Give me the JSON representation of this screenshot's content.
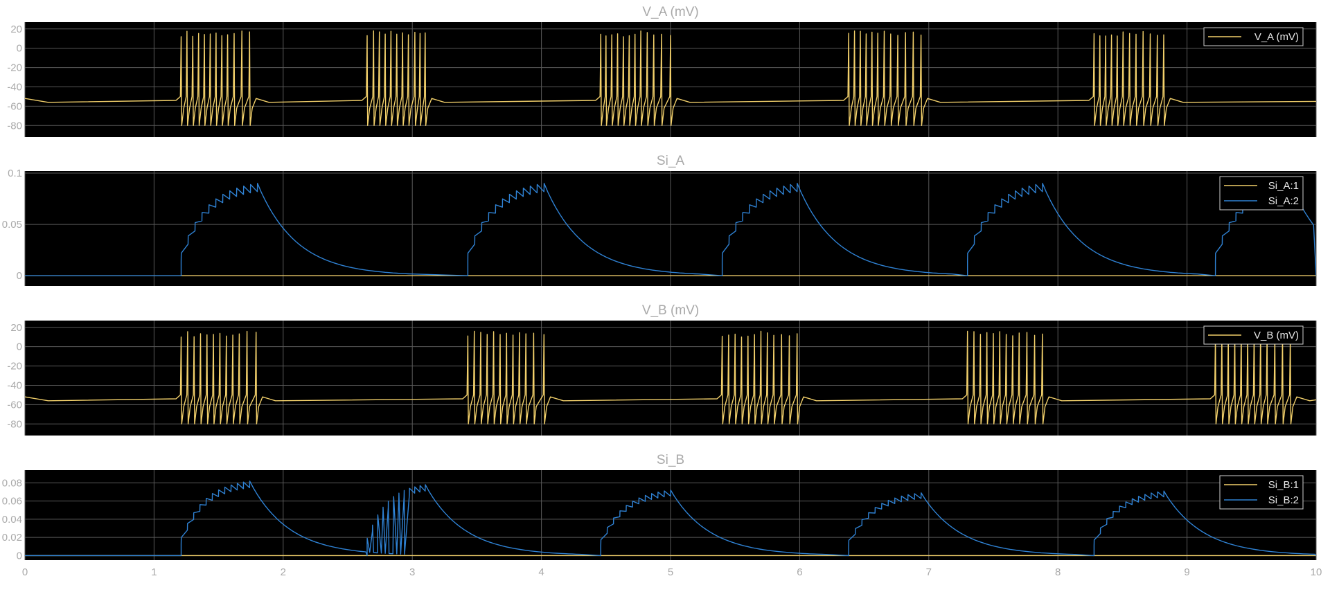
{
  "colors": {
    "plot_background": "#000000",
    "grid": "#5a5a5a",
    "text": "#a9a9a9",
    "signal_yellow": "#f2d06b",
    "signal_blue": "#2f82d4"
  },
  "chart_data": [
    {
      "type": "line",
      "title": "V_A (mV)",
      "xlim": [
        0,
        10
      ],
      "ylim": [
        -92,
        27
      ],
      "yticks": [
        -80,
        -60,
        -40,
        -20,
        0,
        20
      ],
      "ytick_labels": [
        "-80",
        "-60",
        "-40",
        "-20",
        "0",
        "20"
      ],
      "grid": true,
      "legend_position": "top-right",
      "waveform": "spiking",
      "rest_level": -56,
      "spike_peak": 16,
      "spike_trough": -80,
      "series": [
        {
          "name": "V_A (mV)",
          "color": "#f2d06b",
          "bursts": [
            {
              "start": 1.21,
              "end": 1.74,
              "spike_times": [
                1.21,
                1.255,
                1.3,
                1.345,
                1.39,
                1.435,
                1.48,
                1.525,
                1.57,
                1.62,
                1.68,
                1.74
              ]
            },
            {
              "start": 2.65,
              "end": 3.1,
              "spike_times": [
                2.65,
                2.7,
                2.745,
                2.79,
                2.835,
                2.88,
                2.925,
                2.97,
                3.02,
                3.06,
                3.1
              ]
            },
            {
              "start": 4.46,
              "end": 5.0,
              "spike_times": [
                4.46,
                4.5,
                4.545,
                4.59,
                4.635,
                4.68,
                4.725,
                4.77,
                4.82,
                4.87,
                4.93,
                5.0
              ]
            },
            {
              "start": 6.38,
              "end": 6.94,
              "spike_times": [
                6.38,
                6.425,
                6.47,
                6.515,
                6.56,
                6.605,
                6.655,
                6.705,
                6.76,
                6.82,
                6.88,
                6.94
              ]
            },
            {
              "start": 8.28,
              "end": 8.82,
              "spike_times": [
                8.28,
                8.325,
                8.37,
                8.415,
                8.46,
                8.505,
                8.555,
                8.605,
                8.66,
                8.715,
                8.77,
                8.82
              ]
            }
          ]
        }
      ]
    },
    {
      "type": "line",
      "title": "Si_A",
      "xlim": [
        0,
        10
      ],
      "ylim": [
        -0.01,
        0.102
      ],
      "yticks": [
        0,
        0.05,
        0.1
      ],
      "ytick_labels": [
        "0",
        "0.05",
        "0.1"
      ],
      "grid": true,
      "legend_position": "top-right",
      "waveform": "synaptic",
      "peak_value": 0.09,
      "decay_tau": 0.3,
      "series": [
        {
          "name": "Si_A:1",
          "color": "#f2d06b",
          "constant_value": 0
        },
        {
          "name": "Si_A:2",
          "color": "#2f82d4",
          "bursts": [
            {
              "start": 1.21,
              "end": 1.8,
              "peak_value": 0.09
            },
            {
              "start": 3.43,
              "end": 4.02,
              "peak_value": 0.09
            },
            {
              "start": 5.4,
              "end": 5.98,
              "peak_value": 0.09
            },
            {
              "start": 7.3,
              "end": 7.88,
              "peak_value": 0.09
            },
            {
              "start": 9.22,
              "end": 9.8,
              "peak_value": 0.09
            }
          ]
        }
      ]
    },
    {
      "type": "line",
      "title": "V_B (mV)",
      "xlim": [
        0,
        10
      ],
      "ylim": [
        -92,
        27
      ],
      "yticks": [
        -80,
        -60,
        -40,
        -20,
        0,
        20
      ],
      "ytick_labels": [
        "-80",
        "-60",
        "-40",
        "-20",
        "0",
        "20"
      ],
      "grid": true,
      "legend_position": "top-right",
      "waveform": "spiking",
      "rest_level": -56,
      "spike_peak": 14,
      "spike_trough": -80,
      "series": [
        {
          "name": "V_B (mV)",
          "color": "#f2d06b",
          "bursts": [
            {
              "start": 1.21,
              "end": 1.79,
              "spike_times": [
                1.21,
                1.26,
                1.31,
                1.36,
                1.41,
                1.46,
                1.51,
                1.56,
                1.61,
                1.66,
                1.72,
                1.79
              ]
            },
            {
              "start": 3.43,
              "end": 4.02,
              "spike_times": [
                3.43,
                3.48,
                3.53,
                3.58,
                3.63,
                3.68,
                3.73,
                3.78,
                3.83,
                3.88,
                3.94,
                4.02
              ]
            },
            {
              "start": 5.4,
              "end": 5.98,
              "spike_times": [
                5.4,
                5.45,
                5.5,
                5.55,
                5.6,
                5.65,
                5.7,
                5.75,
                5.8,
                5.86,
                5.92,
                5.98
              ]
            },
            {
              "start": 7.3,
              "end": 7.88,
              "spike_times": [
                7.3,
                7.35,
                7.4,
                7.45,
                7.5,
                7.55,
                7.6,
                7.65,
                7.7,
                7.76,
                7.82,
                7.88
              ]
            },
            {
              "start": 9.22,
              "end": 9.8,
              "spike_times": [
                9.22,
                9.27,
                9.32,
                9.37,
                9.42,
                9.47,
                9.52,
                9.57,
                9.62,
                9.68,
                9.74,
                9.8
              ]
            }
          ]
        }
      ]
    },
    {
      "type": "line",
      "title": "Si_B",
      "xlim": [
        0,
        10
      ],
      "ylim": [
        -0.005,
        0.094
      ],
      "yticks": [
        0,
        0.02,
        0.04,
        0.06,
        0.08
      ],
      "ytick_labels": [
        "0",
        "0.02",
        "0.04",
        "0.06",
        "0.08"
      ],
      "xticks": [
        0,
        1,
        2,
        3,
        4,
        5,
        6,
        7,
        8,
        9,
        10
      ],
      "xtick_labels": [
        "0",
        "1",
        "2",
        "3",
        "4",
        "5",
        "6",
        "7",
        "8",
        "9",
        "10"
      ],
      "grid": true,
      "legend_position": "top-right",
      "waveform": "synaptic",
      "decay_tau": 0.3,
      "series": [
        {
          "name": "Si_B:1",
          "color": "#f2d06b",
          "constant_value": 0
        },
        {
          "name": "Si_B:2",
          "color": "#2f82d4",
          "bursts": [
            {
              "start": 1.21,
              "end": 1.74,
              "peak_value": 0.082
            },
            {
              "start": 2.65,
              "end": 3.1,
              "peak_value": 0.078
            },
            {
              "start": 4.46,
              "end": 5.0,
              "peak_value": 0.072
            },
            {
              "start": 6.38,
              "end": 6.94,
              "peak_value": 0.069
            },
            {
              "start": 8.28,
              "end": 8.82,
              "peak_value": 0.071
            }
          ]
        }
      ]
    }
  ]
}
